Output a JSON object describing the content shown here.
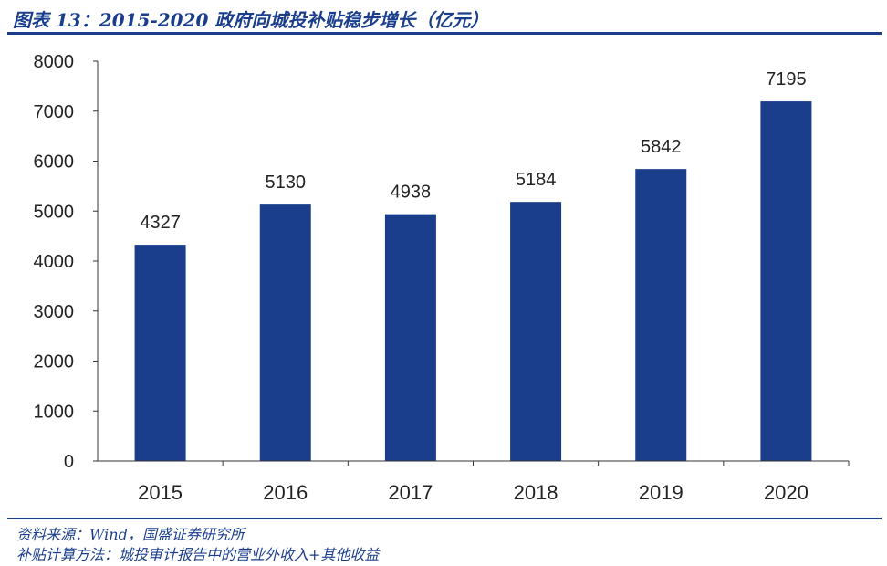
{
  "title": "图表 13：2015-2020 政府向城投补贴稳步增长（亿元）",
  "notes": {
    "source": "资料来源：Wind，国盛证券研究所",
    "method": "补贴计算方法：城投审计报告中的营业外收入+其他收益"
  },
  "colors": {
    "bar": "#1a3e8c",
    "header": "#1a3e8c",
    "axis": "#333333"
  },
  "chart_data": {
    "type": "bar",
    "categories": [
      "2015",
      "2016",
      "2017",
      "2018",
      "2019",
      "2020"
    ],
    "values": [
      4327,
      5130,
      4938,
      5184,
      5842,
      7195
    ],
    "data_labels": [
      "4327",
      "5130",
      "4938",
      "5184",
      "5842",
      "7195"
    ],
    "yticks": [
      "0",
      "1000",
      "2000",
      "3000",
      "4000",
      "5000",
      "6000",
      "7000",
      "8000"
    ],
    "ylim": [
      0,
      8000
    ],
    "xlabel": "",
    "ylabel": "",
    "grid": false,
    "legend": "none"
  }
}
